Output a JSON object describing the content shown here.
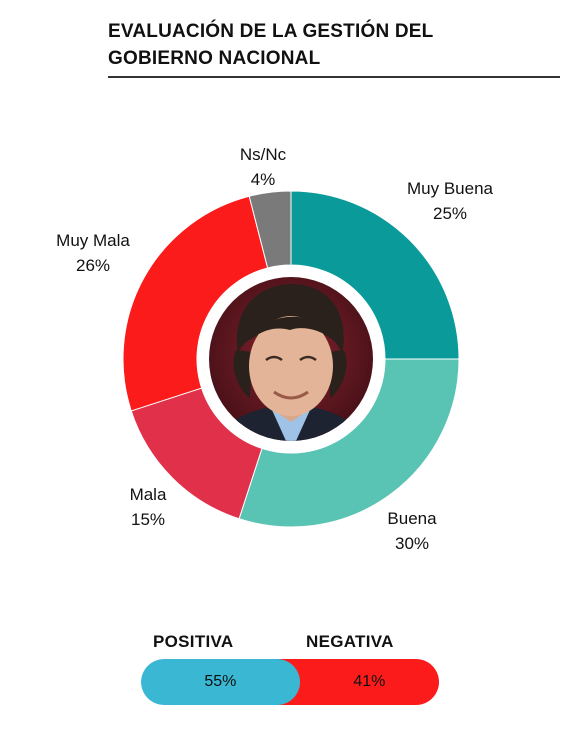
{
  "title": {
    "line1": "EVALUACIÓN DE LA GESTIÓN DEL",
    "line2": "GOBIERNO NACIONAL"
  },
  "chart_data": {
    "type": "pie",
    "style": "donut",
    "center_image": "portrait-photo",
    "categories": [
      "Muy Buena",
      "Buena",
      "Mala",
      "Muy Mala",
      "Ns/Nc"
    ],
    "values": [
      25,
      30,
      15,
      26,
      4
    ],
    "value_labels": [
      "25%",
      "30%",
      "15%",
      "26%",
      "4%"
    ],
    "colors": [
      "#0a9a9a",
      "#5ac4b4",
      "#e0304a",
      "#fb1b1b",
      "#7a7a7a"
    ],
    "unit": "%"
  },
  "summary": {
    "positive": {
      "label": "POSITIVA",
      "value": 55,
      "value_label": "55%",
      "color": "#3ab7d3"
    },
    "negative": {
      "label": "NEGATIVA",
      "value": 41,
      "value_label": "41%",
      "color": "#fb1b1b"
    }
  }
}
